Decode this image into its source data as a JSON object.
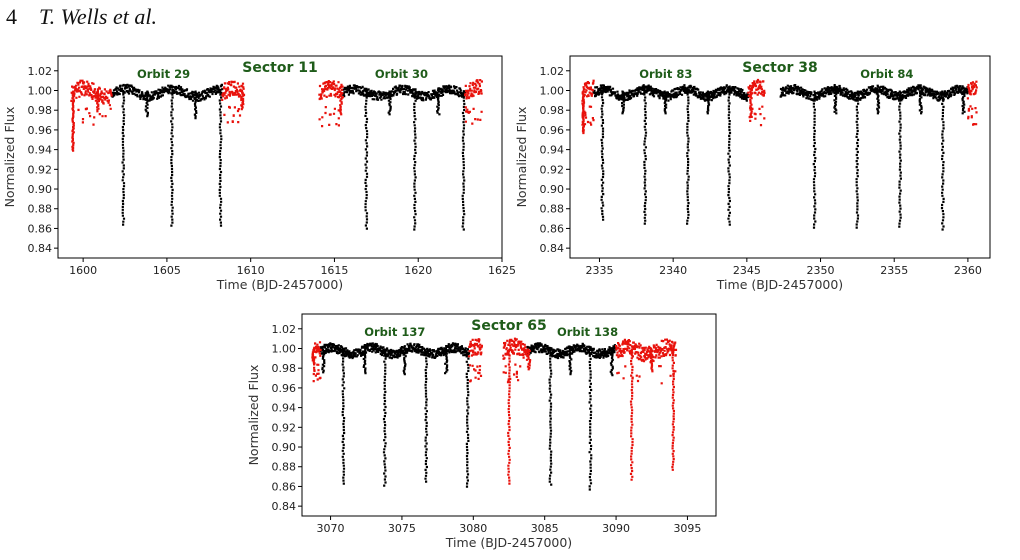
{
  "header": {
    "page_number": "4",
    "running_head": "T. Wells et al."
  },
  "style": {
    "primary_color": "#000000",
    "excluded_color": "#e8120c",
    "label_color": "#1f5c1a"
  },
  "chart_data": [
    {
      "type": "scatter",
      "title": "Sector 11",
      "xlabel": "Time (BJD-2457000)",
      "ylabel": "Normalized Flux",
      "xlim": [
        1598.5,
        1625
      ],
      "ylim": [
        0.83,
        1.035
      ],
      "xticks": [
        1600,
        1605,
        1610,
        1615,
        1620,
        1625
      ],
      "yticks": [
        0.84,
        0.86,
        0.88,
        0.9,
        0.92,
        0.94,
        0.96,
        0.98,
        1.0,
        1.02
      ],
      "annotations": [
        {
          "text": "Orbit 29",
          "x": 1604.8,
          "y": 1.018
        },
        {
          "text": "Orbit 30",
          "x": 1619.0,
          "y": 1.018
        }
      ],
      "series": [
        {
          "color": "black",
          "segments": [
            [
              1601.7,
              1608.3
            ],
            [
              1615.5,
              1622.8
            ]
          ],
          "primary_eclipses": [
            [
              1602.4,
              0.865
            ],
            [
              1605.3,
              0.864
            ],
            [
              1608.2,
              0.864
            ],
            [
              1616.9,
              0.861
            ],
            [
              1619.8,
              0.86
            ],
            [
              1622.7,
              0.86
            ]
          ],
          "secondary_eclipses": [
            [
              1603.8,
              0.975
            ],
            [
              1606.7,
              0.973
            ],
            [
              1618.3,
              0.977
            ],
            [
              1621.2,
              0.977
            ]
          ]
        },
        {
          "color": "red",
          "segments": [
            [
              1599.3,
              1601.7
            ],
            [
              1608.3,
              1609.6
            ],
            [
              1614.1,
              1615.5
            ],
            [
              1622.8,
              1623.8
            ]
          ],
          "primary_eclipses": [
            [
              1599.4,
              0.94
            ]
          ],
          "secondary_eclipses": [
            [
              1600.9,
              0.98
            ],
            [
              1609.5,
              0.984
            ],
            [
              1615.4,
              0.977
            ]
          ]
        }
      ]
    },
    {
      "type": "scatter",
      "title": "Sector 38",
      "xlabel": "Time (BJD-2457000)",
      "ylabel": "Normalized Flux",
      "xlim": [
        2333,
        2361.5
      ],
      "ylim": [
        0.83,
        1.035
      ],
      "xticks": [
        2335,
        2340,
        2345,
        2350,
        2355,
        2360
      ],
      "yticks": [
        0.84,
        0.86,
        0.88,
        0.9,
        0.92,
        0.94,
        0.96,
        0.98,
        1.0,
        1.02
      ],
      "annotations": [
        {
          "text": "Orbit 83",
          "x": 2339.5,
          "y": 1.018
        },
        {
          "text": "Orbit 84",
          "x": 2354.5,
          "y": 1.018
        }
      ],
      "series": [
        {
          "color": "black",
          "segments": [
            [
              2334.6,
              2345.1
            ],
            [
              2347.3,
              2360.0
            ]
          ],
          "primary_eclipses": [
            [
              2335.2,
              0.87
            ],
            [
              2338.1,
              0.866
            ],
            [
              2341.0,
              0.866
            ],
            [
              2343.8,
              0.865
            ],
            [
              2349.6,
              0.862
            ],
            [
              2352.5,
              0.862
            ],
            [
              2355.4,
              0.863
            ],
            [
              2358.3,
              0.86
            ]
          ],
          "secondary_eclipses": [
            [
              2336.6,
              0.978
            ],
            [
              2339.5,
              0.978
            ],
            [
              2342.4,
              0.978
            ],
            [
              2351.0,
              0.978
            ],
            [
              2353.9,
              0.978
            ],
            [
              2356.8,
              0.978
            ],
            [
              2359.7,
              0.978
            ]
          ]
        },
        {
          "color": "red",
          "segments": [
            [
              2333.9,
              2334.6
            ],
            [
              2345.1,
              2346.2
            ],
            [
              2360.0,
              2360.6
            ]
          ],
          "primary_eclipses": [
            [
              2333.9,
              0.958
            ]
          ],
          "secondary_eclipses": [
            [
              2345.3,
              0.975
            ]
          ]
        }
      ]
    },
    {
      "type": "scatter",
      "title": "Sector 65",
      "xlabel": "Time (BJD-2457000)",
      "ylabel": "Normalized Flux",
      "xlim": [
        3068,
        3097
      ],
      "ylim": [
        0.83,
        1.035
      ],
      "xticks": [
        3070,
        3075,
        3080,
        3085,
        3090,
        3095
      ],
      "yticks": [
        0.84,
        0.86,
        0.88,
        0.9,
        0.92,
        0.94,
        0.96,
        0.98,
        1.0,
        1.02
      ],
      "annotations": [
        {
          "text": "Orbit 137",
          "x": 3074.5,
          "y": 1.018
        },
        {
          "text": "Orbit 138",
          "x": 3088.0,
          "y": 1.018
        }
      ],
      "series": [
        {
          "color": "black",
          "segments": [
            [
              3069.3,
              3079.7
            ],
            [
              3083.8,
              3090.0
            ]
          ],
          "primary_eclipses": [
            [
              3070.9,
              0.864
            ],
            [
              3073.8,
              0.862
            ],
            [
              3076.7,
              0.866
            ],
            [
              3079.6,
              0.861
            ],
            [
              3085.4,
              0.863
            ],
            [
              3088.2,
              0.858
            ]
          ],
          "secondary_eclipses": [
            [
              3069.5,
              0.977
            ],
            [
              3072.4,
              0.976
            ],
            [
              3075.2,
              0.975
            ],
            [
              3078.1,
              0.976
            ],
            [
              3086.8,
              0.975
            ],
            [
              3089.7,
              0.974
            ]
          ]
        },
        {
          "color": "red",
          "segments": [
            [
              3068.8,
              3069.3
            ],
            [
              3079.7,
              3080.6
            ],
            [
              3082.1,
              3083.8
            ],
            [
              3090.0,
              3094.2
            ]
          ],
          "primary_eclipses": [
            [
              3082.5,
              0.864
            ],
            [
              3091.1,
              0.868
            ],
            [
              3094.0,
              0.878
            ]
          ],
          "secondary_eclipses": [
            [
              3068.8,
              0.985
            ],
            [
              3083.9,
              0.98
            ],
            [
              3092.5,
              0.978
            ]
          ]
        }
      ]
    }
  ]
}
